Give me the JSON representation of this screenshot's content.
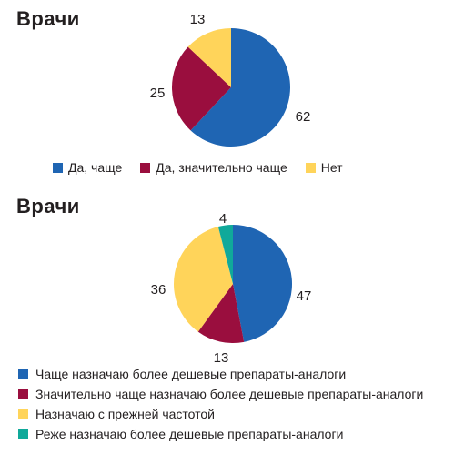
{
  "colors": {
    "blue": "#1f65b3",
    "maroon": "#9a0e3e",
    "yellow": "#ffd45a",
    "teal": "#10a99a"
  },
  "chart_data": [
    {
      "type": "pie",
      "title": "Врачи",
      "labels": [
        "Да, чаще",
        "Да, значительно чаще",
        "Нет"
      ],
      "values": [
        62,
        25,
        13
      ],
      "colors": [
        "#1f65b3",
        "#9a0e3e",
        "#ffd45a"
      ],
      "legend_position": "bottom"
    },
    {
      "type": "pie",
      "title": "Врачи",
      "labels": [
        "Чаще назначаю более дешевые препараты-аналоги",
        "Значительно чаще назначаю более дешевые препараты-аналоги",
        "Назначаю с прежней частотой",
        "Реже назначаю более дешевые препараты-аналоги"
      ],
      "values": [
        47,
        13,
        36,
        4
      ],
      "colors": [
        "#1f65b3",
        "#9a0e3e",
        "#ffd45a",
        "#10a99a"
      ],
      "legend_position": "bottom"
    }
  ]
}
